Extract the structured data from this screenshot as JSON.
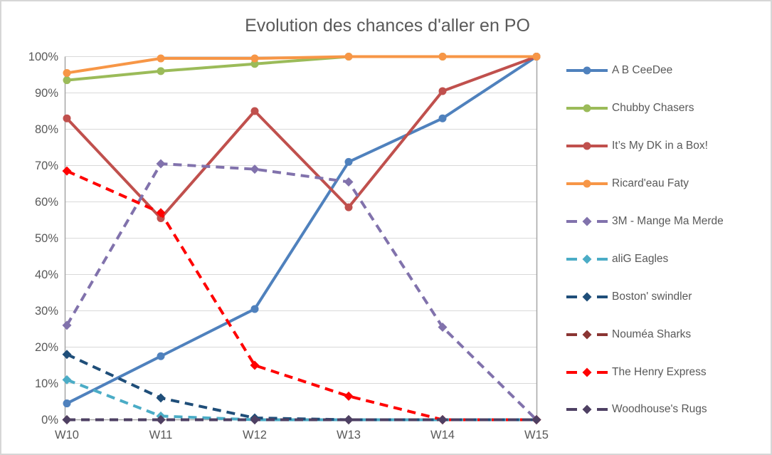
{
  "title": "Evolution des chances d'aller en PO",
  "chart_data": {
    "type": "line",
    "title": "Evolution des chances d'aller en PO",
    "categories": [
      "W10",
      "W11",
      "W12",
      "W13",
      "W14",
      "W15"
    ],
    "y_ticks": [
      "0%",
      "10%",
      "20%",
      "30%",
      "40%",
      "50%",
      "60%",
      "70%",
      "80%",
      "90%",
      "100%"
    ],
    "ylim": [
      0,
      100
    ],
    "grid": "horizontal",
    "legend_position": "right",
    "series": [
      {
        "name": "A B CeeDee",
        "color": "#4F81BD",
        "line": "solid",
        "marker": "circle",
        "values": [
          4.5,
          17.5,
          30.5,
          71,
          83,
          100
        ]
      },
      {
        "name": "Chubby Chasers",
        "color": "#9BBB59",
        "line": "solid",
        "marker": "circle",
        "values": [
          93.5,
          96,
          98,
          100,
          100,
          100
        ]
      },
      {
        "name": "It’s My DK in a Box!",
        "color": "#C0504D",
        "line": "solid",
        "marker": "circle",
        "values": [
          83,
          55.5,
          85,
          58.5,
          90.5,
          100
        ]
      },
      {
        "name": "Ricard'eau Faty",
        "color": "#F79646",
        "line": "solid",
        "marker": "circle",
        "values": [
          95.5,
          99.5,
          99.5,
          100,
          100,
          100
        ]
      },
      {
        "name": "3M - Mange Ma Merde",
        "color": "#8172AC",
        "line": "dashed",
        "marker": "diamond",
        "values": [
          26,
          70.5,
          69,
          65.5,
          25.5,
          0
        ]
      },
      {
        "name": "aliG Eagles",
        "color": "#4BACC6",
        "line": "dashed",
        "marker": "diamond",
        "values": [
          11,
          1,
          0,
          0,
          0,
          0
        ]
      },
      {
        "name": "Boston' swindler",
        "color": "#1F4E79",
        "line": "dashed",
        "marker": "diamond",
        "values": [
          18,
          6,
          0.5,
          0,
          0,
          0
        ]
      },
      {
        "name": "Nouméa Sharks",
        "color": "#8A3533",
        "line": "dashed",
        "marker": "diamond",
        "values": [
          0,
          0,
          0,
          0,
          0,
          0
        ]
      },
      {
        "name": "The Henry Express",
        "color": "#FF0000",
        "line": "dashed",
        "marker": "diamond",
        "values": [
          68.5,
          57,
          15,
          6.5,
          0,
          0
        ]
      },
      {
        "name": "Woodhouse's Rugs",
        "color": "#4E4063",
        "line": "dashed",
        "marker": "diamond",
        "values": [
          0,
          0,
          0,
          0,
          0,
          0
        ]
      }
    ],
    "axis_color": "#A6A6A6",
    "gridline_color": "#D9D9D9",
    "label_color": "#595959"
  }
}
